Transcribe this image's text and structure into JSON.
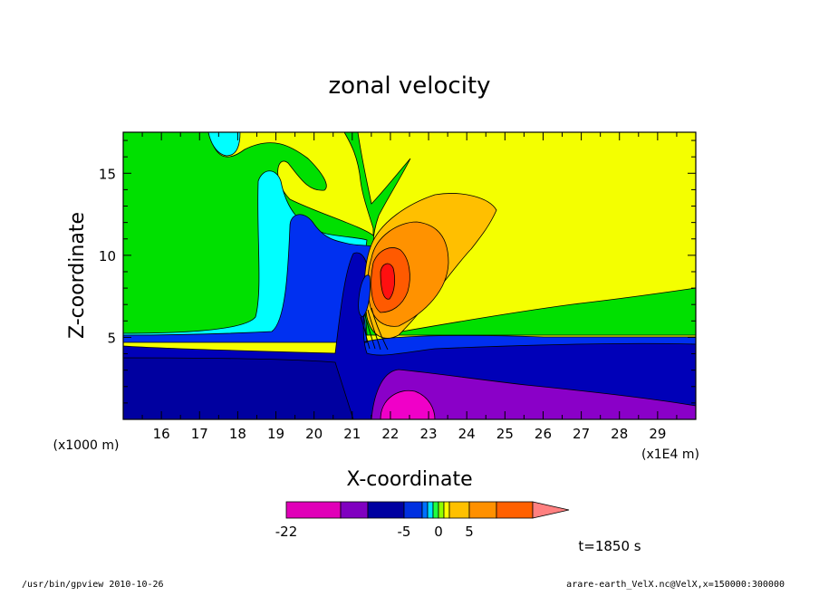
{
  "chart_data": {
    "type": "contour",
    "title": "zonal velocity",
    "xlabel": "X-coordinate",
    "ylabel": "Z-coordinate",
    "x_unit": "(x1E4 m)",
    "y_unit": "(x1000 m)",
    "xlim": [
      15.0,
      30.0
    ],
    "ylim": [
      0.0,
      17.5
    ],
    "x_ticks": [
      "16",
      "17",
      "18",
      "19",
      "20",
      "21",
      "22",
      "23",
      "24",
      "25",
      "26",
      "27",
      "28",
      "29"
    ],
    "y_ticks": [
      "5",
      "10",
      "15"
    ],
    "time_label": "t=1850 s",
    "colorbar": {
      "tick_labels": [
        "-22",
        "-5",
        "0",
        "5"
      ],
      "colors": [
        "#e000b8",
        "#8000c0",
        "#0000a0",
        "#0030e0",
        "#0070ff",
        "#00e0ff",
        "#20ff40",
        "#90ff00",
        "#ffff00",
        "#ffc000",
        "#ff9000",
        "#ff6000",
        "#ff1010",
        "#ff8080"
      ]
    }
  },
  "footer": {
    "left": "/usr/bin/gpview   2010-10-26",
    "right": "arare-earth_VelX.nc@VelX,x=150000:300000"
  }
}
